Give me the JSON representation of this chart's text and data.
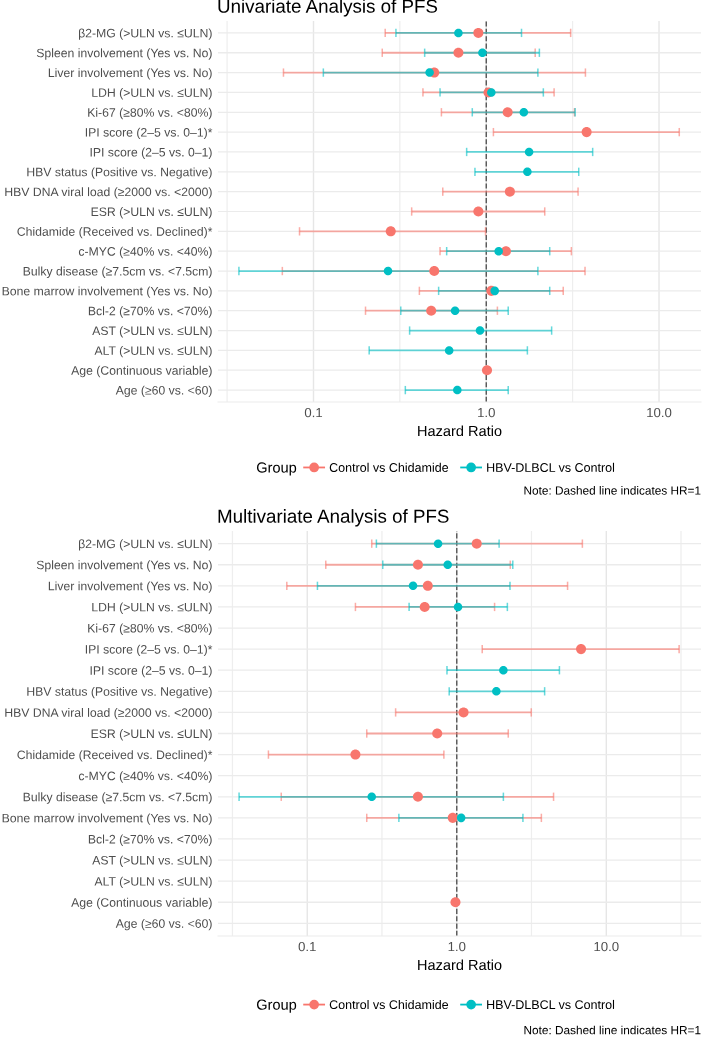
{
  "chart_data": [
    {
      "type": "scatter",
      "orientation": "horizontal",
      "title": "Univariate Analysis of PFS",
      "xlabel": "Hazard Ratio",
      "legend_title": "Group",
      "legend": "bottom",
      "grid": true,
      "marker": "circle",
      "log": "x",
      "categories": [
        "β2-MG (>ULN vs. ≤ULN)",
        "Spleen involvement (Yes vs. No)",
        "Liver involvement (Yes vs. No)",
        "LDH (>ULN vs. ≤ULN)",
        "Ki-67 (≥80% vs. <80%)",
        "IPI score (2–5 vs. 0–1)*",
        "IPI score (2–5 vs. 0–1)",
        "HBV status (Positive vs. Negative)",
        "HBV DNA viral load (≥2000 vs. <2000)",
        "ESR (>ULN vs. ≤ULN)",
        "Chidamide (Received vs. Declined)*",
        "c-MYC (≥40% vs. <40%)",
        "Bulky disease (≥7.5cm vs. <7.5cm)",
        "Bone marrow involvement (Yes vs. No)",
        "Bcl-2 (≥70% vs. <70%)",
        "AST (>ULN vs. ≤ULN)",
        "ALT (>ULN vs. ≤ULN)",
        "Age (Continuous variable)",
        "Age (≥60 vs. <60)"
      ],
      "xlim": [
        0.028,
        17.5
      ],
      "xticks": [
        {
          "value": 0.0316,
          "label": null
        },
        0.1,
        {
          "value": 0.316,
          "label": null
        },
        {
          "value": 1,
          "label": "1.0"
        },
        {
          "value": 3.16,
          "label": null
        },
        {
          "value": 10,
          "label": "10.0"
        }
      ],
      "ref_lines": [
        {
          "axis": "x",
          "value": 1,
          "label": null,
          "line_style": "dashed",
          "color": "#555555"
        }
      ],
      "annotations": [
        "Note: Dashed line indicates HR=1"
      ],
      "series": [
        {
          "name": "Control vs Chidamide",
          "color": "#f8766d",
          "values": [
            0.9,
            0.69,
            0.5,
            1.03,
            1.33,
            3.81,
            null,
            null,
            1.37,
            0.9,
            0.28,
            1.3,
            0.5,
            1.07,
            0.48,
            null,
            null,
            1.01,
            null
          ],
          "errors": [
            [
              0.26,
              3.08
            ],
            [
              0.25,
              1.92
            ],
            [
              0.067,
              3.75
            ],
            [
              0.43,
              2.47
            ],
            [
              0.55,
              3.24
            ],
            [
              1.1,
              13.1
            ],
            null,
            null,
            [
              0.56,
              3.4
            ],
            [
              0.37,
              2.18
            ],
            [
              0.083,
              0.99
            ],
            [
              0.54,
              3.11
            ],
            [
              0.066,
              3.73
            ],
            [
              0.41,
              2.79
            ],
            [
              0.2,
              1.16
            ],
            null,
            null,
            null,
            null
          ]
        },
        {
          "name": "HBV-DLBCL vs Control",
          "color": "#00bfc4",
          "values": [
            0.69,
            0.95,
            0.47,
            1.07,
            1.65,
            null,
            1.77,
            1.73,
            null,
            null,
            null,
            1.18,
            0.27,
            1.12,
            0.66,
            0.92,
            0.61,
            null,
            0.68
          ],
          "errors": [
            [
              0.3,
              1.6
            ],
            [
              0.44,
              2.03
            ],
            [
              0.114,
              1.99
            ],
            [
              0.54,
              2.14
            ],
            [
              0.83,
              3.27
            ],
            null,
            [
              0.77,
              4.13
            ],
            [
              0.86,
              3.43
            ],
            null,
            null,
            null,
            [
              0.59,
              2.33
            ],
            [
              0.037,
              1.99
            ],
            [
              0.53,
              2.33
            ],
            [
              0.32,
              1.34
            ],
            [
              0.36,
              2.39
            ],
            [
              0.21,
              1.73
            ],
            null,
            [
              0.34,
              1.34
            ]
          ]
        }
      ]
    },
    {
      "type": "scatter",
      "orientation": "horizontal",
      "title": "Multivariate Analysis of PFS",
      "xlabel": "Hazard Ratio",
      "legend_title": "Group",
      "legend": "bottom",
      "grid": true,
      "marker": "circle",
      "log": "x",
      "categories": [
        "β2-MG (>ULN vs. ≤ULN)",
        "Spleen involvement (Yes vs. No)",
        "Liver involvement (Yes vs. No)",
        "LDH (>ULN vs. ≤ULN)",
        "Ki-67 (≥80% vs. <80%)",
        "IPI score (2–5 vs. 0–1)*",
        "IPI score (2–5 vs. 0–1)",
        "HBV status (Positive vs. Negative)",
        "HBV DNA viral load (≥2000 vs. <2000)",
        "ESR (>ULN vs. ≤ULN)",
        "Chidamide (Received vs. Declined)*",
        "c-MYC (≥40% vs. <40%)",
        "Bulky disease (≥7.5cm vs. <7.5cm)",
        "Bone marrow involvement (Yes vs. No)",
        "Bcl-2 (≥70% vs. <70%)",
        "AST (>ULN vs. ≤ULN)",
        "ALT (>ULN vs. ≤ULN)",
        "Age (Continuous variable)",
        "Age (≥60 vs. <60)"
      ],
      "xlim": [
        0.0253,
        43
      ],
      "xticks": [
        {
          "value": 0.0316,
          "label": null
        },
        0.1,
        {
          "value": 0.316,
          "label": null
        },
        {
          "value": 1,
          "label": "1.0"
        },
        {
          "value": 3.16,
          "label": null
        },
        {
          "value": 10,
          "label": "10.0"
        },
        {
          "value": 31.6,
          "label": null
        }
      ],
      "ref_lines": [
        {
          "axis": "x",
          "value": 1,
          "label": null,
          "line_style": "dashed",
          "color": "#555555"
        }
      ],
      "annotations": [
        "Note: Dashed line indicates HR=1"
      ],
      "series": [
        {
          "name": "Control vs Chidamide",
          "color": "#f8766d",
          "values": [
            1.36,
            0.55,
            0.64,
            0.61,
            null,
            6.78,
            null,
            null,
            1.11,
            0.74,
            0.21,
            null,
            0.55,
            0.94,
            null,
            null,
            null,
            0.98,
            null
          ],
          "errors": [
            [
              0.27,
              6.92
            ],
            [
              0.133,
              2.28
            ],
            [
              0.073,
              5.51
            ],
            [
              0.21,
              1.79
            ],
            null,
            [
              1.48,
              30.7
            ],
            null,
            null,
            [
              0.39,
              3.15
            ],
            [
              0.25,
              2.21
            ],
            [
              0.055,
              0.82
            ],
            null,
            [
              0.067,
              4.44
            ],
            [
              0.25,
              3.68
            ],
            null,
            null,
            null,
            null,
            null
          ]
        },
        {
          "name": "HBV-DLBCL vs Control",
          "color": "#00bfc4",
          "values": [
            0.75,
            0.87,
            0.51,
            1.02,
            null,
            null,
            2.05,
            1.84,
            null,
            null,
            null,
            null,
            0.27,
            1.07,
            null,
            null,
            null,
            null,
            null
          ],
          "errors": [
            [
              0.29,
              1.92
            ],
            [
              0.32,
              2.37
            ],
            [
              0.117,
              2.27
            ],
            [
              0.48,
              2.18
            ],
            null,
            null,
            [
              0.86,
              4.86
            ],
            [
              0.89,
              3.87
            ],
            null,
            null,
            null,
            null,
            [
              0.035,
              2.05
            ],
            [
              0.41,
              2.77
            ],
            null,
            null,
            null,
            null,
            null
          ]
        }
      ]
    }
  ]
}
